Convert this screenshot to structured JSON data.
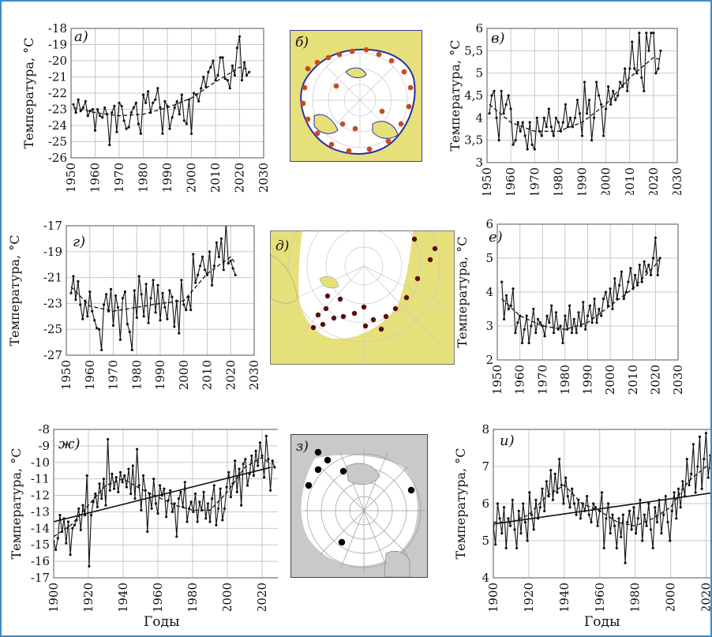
{
  "figure": {
    "ylabel": "Температура, °С",
    "xlabel": "Годы",
    "accent": "#3f8ac6",
    "map_land_color": "#e6e07a",
    "map_ocean_color": "#ffffff",
    "map_gray_land": "#c9c9c9",
    "station_red": "#e23b23",
    "station_dark": "#5a0d0d"
  },
  "maps": [
    {
      "label": "б)",
      "name": "map-b"
    },
    {
      "label": "д)",
      "name": "map-d"
    },
    {
      "label": "з)",
      "name": "map-z"
    }
  ],
  "chart_data": [
    {
      "panel": "а)",
      "type": "line",
      "ylabel": "Температура, °С",
      "xlim": [
        1950,
        2030
      ],
      "xticks": [
        1950,
        1960,
        1970,
        1980,
        1990,
        2000,
        2010,
        2020,
        2030
      ],
      "ylim": [
        -26,
        -18
      ],
      "yticks": [
        -26,
        -25,
        -24,
        -23,
        -22,
        -21,
        -20,
        -19,
        -18
      ],
      "ytick_labels": [
        "-26",
        "-25",
        "-24",
        "-23",
        "-22",
        "-21",
        "-20",
        "-19",
        "-18"
      ],
      "x_start": 1951,
      "values": [
        -22.7,
        -23.2,
        -22.4,
        -23.1,
        -22.9,
        -22.5,
        -23.4,
        -23.1,
        -23.0,
        -24.3,
        -23.0,
        -23.4,
        -23.5,
        -22.9,
        -23.3,
        -25.2,
        -23.2,
        -22.8,
        -24.4,
        -22.6,
        -22.8,
        -23.7,
        -24.2,
        -24.1,
        -23.2,
        -22.9,
        -22.6,
        -23.9,
        -24.5,
        -22.1,
        -22.6,
        -21.9,
        -23.2,
        -22.6,
        -22.4,
        -21.7,
        -22.9,
        -24.5,
        -22.5,
        -22.8,
        -24.2,
        -23.5,
        -22.9,
        -22.5,
        -23.3,
        -22.1,
        -23.7,
        -23.9,
        -22.4,
        -24.5,
        -22.0,
        -22.1,
        -22.5,
        -21.7,
        -21.0,
        -21.6,
        -20.7,
        -20.4,
        -20.0,
        -21.2,
        -20.9,
        -19.8,
        -19.8,
        -21.1,
        -21.2,
        -21.7,
        -20.3,
        -20.9,
        -19.2,
        -18.5,
        -21.2,
        -20.1,
        -20.9,
        -20.7
      ],
      "trend": {
        "style": "dashed",
        "x": [
          1951,
          1960,
          1970,
          1980,
          1990,
          2000,
          2010,
          2020,
          2023
        ],
        "y": [
          -22.9,
          -23.2,
          -23.4,
          -23.3,
          -22.9,
          -22.3,
          -21.3,
          -20.4,
          -20.5
        ]
      }
    },
    {
      "panel": "в)",
      "type": "line",
      "ylabel": "Температура, °С",
      "xlim": [
        1950,
        2030
      ],
      "xticks": [
        1950,
        1960,
        1970,
        1980,
        1990,
        2000,
        2010,
        2020,
        2030
      ],
      "ylim": [
        3,
        6
      ],
      "yticks": [
        3,
        3.5,
        4,
        4.5,
        5,
        5.5,
        6
      ],
      "ytick_labels": [
        "3",
        "3,5",
        "4",
        "4,5",
        "5",
        "5,5",
        "6"
      ],
      "x_start": 1951,
      "values": [
        4.1,
        4.5,
        4.6,
        4.0,
        3.5,
        4.6,
        4.1,
        4.3,
        4.5,
        4.2,
        3.4,
        3.5,
        3.9,
        3.7,
        3.9,
        3.6,
        3.3,
        3.9,
        3.4,
        3.3,
        4.0,
        3.7,
        3.6,
        4.0,
        3.8,
        4.2,
        3.8,
        3.6,
        4.0,
        3.9,
        3.7,
        3.9,
        4.3,
        3.8,
        4.0,
        3.8,
        4.0,
        4.4,
        4.1,
        3.6,
        4.8,
        4.1,
        4.4,
        3.5,
        4.0,
        4.8,
        4.5,
        4.3,
        3.6,
        4.2,
        4.7,
        4.3,
        4.6,
        4.4,
        4.5,
        4.8,
        4.7,
        5.1,
        4.6,
        5.1,
        5.7,
        5.1,
        5.0,
        5.9,
        4.9,
        4.6,
        5.9,
        5.5,
        5.9,
        5.9,
        5.0,
        5.1,
        5.5
      ],
      "trend": {
        "style": "dashed",
        "x": [
          1951,
          1960,
          1970,
          1980,
          1990,
          2000,
          2010,
          2020,
          2023
        ],
        "y": [
          4.3,
          3.9,
          3.7,
          3.7,
          3.9,
          4.3,
          4.9,
          5.35,
          5.3
        ]
      }
    },
    {
      "panel": "г)",
      "type": "line",
      "ylabel": "Температура, °С",
      "xlim": [
        1950,
        2030
      ],
      "xticks": [
        1950,
        1960,
        1970,
        1980,
        1990,
        2000,
        2010,
        2020,
        2030
      ],
      "ylim": [
        -27,
        -17
      ],
      "yticks": [
        -27,
        -25,
        -23,
        -21,
        -19,
        -17
      ],
      "ytick_labels": [
        "-27",
        "-25",
        "-23",
        "-21",
        "-19",
        "-17"
      ],
      "x_start": 1952,
      "values": [
        -22.2,
        -20.9,
        -22.7,
        -21.3,
        -23.1,
        -24.2,
        -22.8,
        -24.0,
        -22.1,
        -23.6,
        -24.3,
        -24.9,
        -25.0,
        -26.6,
        -23.1,
        -22.3,
        -23.6,
        -21.9,
        -24.7,
        -22.4,
        -23.3,
        -25.8,
        -22.6,
        -22.1,
        -24.6,
        -25.2,
        -26.6,
        -22.0,
        -24.1,
        -20.9,
        -22.3,
        -24.0,
        -21.5,
        -24.5,
        -22.6,
        -21.2,
        -23.7,
        -21.6,
        -24.3,
        -22.2,
        -23.3,
        -24.2,
        -22.0,
        -22.5,
        -24.8,
        -22.8,
        -25.3,
        -21.2,
        -23.1,
        -23.5,
        -22.5,
        -23.5,
        -19.2,
        -21.4,
        -20.8,
        -20.1,
        -19.4,
        -20.4,
        -20.8,
        -19.0,
        -21.6,
        -20.1,
        -18.3,
        -19.4,
        -18.0,
        -20.4,
        -16.8,
        -19.9,
        -19.7,
        -20.3,
        -20.8
      ],
      "trend": {
        "style": "dashed",
        "x": [
          1952,
          1960,
          1970,
          1980,
          1990,
          2000,
          2010,
          2020,
          2022
        ],
        "y": [
          -21.7,
          -23.2,
          -23.6,
          -23.3,
          -23.0,
          -22.8,
          -20.7,
          -19.4,
          -19.9
        ]
      }
    },
    {
      "panel": "е)",
      "type": "line",
      "ylabel": "Температура, °С",
      "xlim": [
        1950,
        2030
      ],
      "xticks": [
        1950,
        1960,
        1970,
        1980,
        1990,
        2000,
        2010,
        2020,
        2030
      ],
      "ylim": [
        2,
        6
      ],
      "yticks": [
        2,
        3,
        4,
        5,
        6
      ],
      "ytick_labels": [
        "2",
        "3",
        "4",
        "5",
        "6"
      ],
      "x_start": 1952,
      "values": [
        4.3,
        3.2,
        3.9,
        3.5,
        3.6,
        4.1,
        2.8,
        3.1,
        3.3,
        2.5,
        2.9,
        3.3,
        2.5,
        3.0,
        3.5,
        2.8,
        3.2,
        3.1,
        3.0,
        2.7,
        3.3,
        3.1,
        3.6,
        2.8,
        3.4,
        2.9,
        3.0,
        2.5,
        3.3,
        2.9,
        3.6,
        2.8,
        3.2,
        2.8,
        3.4,
        3.0,
        3.7,
        2.9,
        3.3,
        3.6,
        3.1,
        3.8,
        3.1,
        3.5,
        3.3,
        3.8,
        4.0,
        3.6,
        4.1,
        3.5,
        4.4,
        3.8,
        4.2,
        4.6,
        3.8,
        4.0,
        4.3,
        4.7,
        4.1,
        4.5,
        4.2,
        4.8,
        4.3,
        4.9,
        4.6,
        4.8,
        4.5,
        5.0,
        5.6,
        4.5,
        5.0
      ],
      "trend": {
        "style": "dashed",
        "x": [
          1952,
          1960,
          1970,
          1980,
          1990,
          2000,
          2010,
          2020,
          2022
        ],
        "y": [
          3.8,
          3.3,
          3.0,
          2.9,
          3.1,
          3.6,
          4.1,
          4.8,
          5.0
        ]
      }
    },
    {
      "panel": "ж)",
      "type": "line",
      "ylabel": "Температура, °С",
      "xlabel": "Годы",
      "xlim": [
        1900,
        2030
      ],
      "xticks": [
        1900,
        1920,
        1940,
        1960,
        1980,
        2000,
        2020
      ],
      "ylim": [
        -17,
        -8
      ],
      "yticks": [
        -17,
        -16,
        -15,
        -14,
        -13,
        -12,
        -11,
        -10,
        -9,
        -8
      ],
      "ytick_labels": [
        "-17",
        "-16",
        "-15",
        "-14",
        "-13",
        "-12",
        "-11",
        "-10",
        "-9",
        "-8"
      ],
      "x_start": 1900,
      "x_step": 1.2,
      "values": [
        -14.8,
        -15.3,
        -14.6,
        -13.2,
        -14.2,
        -13.4,
        -14.9,
        -13.6,
        -15.6,
        -14.0,
        -13.8,
        -13.5,
        -12.8,
        -14.1,
        -12.6,
        -13.2,
        -10.8,
        -16.3,
        -13.2,
        -12.4,
        -11.9,
        -12.7,
        -11.3,
        -12.2,
        -11.0,
        -12.6,
        -8.6,
        -11.7,
        -10.7,
        -11.6,
        -10.9,
        -11.8,
        -10.6,
        -11.2,
        -10.8,
        -11.5,
        -10.4,
        -11.9,
        -10.2,
        -12.2,
        -9.2,
        -11.4,
        -12.9,
        -10.8,
        -11.7,
        -14.2,
        -11.9,
        -12.8,
        -11.0,
        -12.5,
        -13.1,
        -11.4,
        -12.0,
        -11.6,
        -13.3,
        -12.3,
        -11.7,
        -13.0,
        -12.5,
        -14.5,
        -12.2,
        -11.8,
        -12.7,
        -11.2,
        -13.6,
        -12.8,
        -12.4,
        -13.0,
        -11.9,
        -13.6,
        -12.4,
        -12.9,
        -11.8,
        -13.4,
        -12.5,
        -13.6,
        -12.2,
        -11.4,
        -13.8,
        -12.8,
        -11.6,
        -13.5,
        -12.8,
        -11.5,
        -10.6,
        -12.1,
        -11.3,
        -9.9,
        -11.8,
        -10.4,
        -12.6,
        -10.1,
        -9.8,
        -11.4,
        -10.7,
        -9.6,
        -10.8,
        -9.3,
        -10.2,
        -8.8,
        -9.6,
        -10.9,
        -8.4,
        -9.8,
        -11.7,
        -9.9,
        -10.3
      ],
      "trend": {
        "style": "dashed",
        "x": [
          1900,
          1910,
          1920,
          1930,
          1940,
          1950,
          1960,
          1970,
          1980,
          1990,
          2000,
          2010,
          2020,
          2025
        ],
        "y": [
          -14.5,
          -13.8,
          -12.6,
          -11.4,
          -11.0,
          -11.6,
          -12.1,
          -12.6,
          -12.9,
          -12.9,
          -11.8,
          -10.3,
          -9.7,
          -10.1
        ]
      },
      "linear_fit": {
        "style": "solid",
        "x": [
          1900,
          2025
        ],
        "y": [
          -13.6,
          -10.3
        ]
      }
    },
    {
      "panel": "и)",
      "type": "line",
      "ylabel": "Температура, °С",
      "xlabel": "Годы",
      "xlim": [
        1900,
        2030
      ],
      "xticks": [
        1900,
        1920,
        1940,
        1960,
        1980,
        2000,
        2020
      ],
      "ylim": [
        4,
        8
      ],
      "yticks": [
        4,
        5,
        6,
        7,
        8
      ],
      "ytick_labels": [
        "4",
        "5",
        "6",
        "7",
        "8"
      ],
      "x_start": 1900,
      "x_step": 1.2,
      "values": [
        5.4,
        4.9,
        6.0,
        5.6,
        5.2,
        5.9,
        4.8,
        5.6,
        5.4,
        6.1,
        5.3,
        4.8,
        5.8,
        5.2,
        6.0,
        5.5,
        5.0,
        6.3,
        5.7,
        5.3,
        6.1,
        5.6,
        5.9,
        6.4,
        5.8,
        6.6,
        6.2,
        6.9,
        6.1,
        6.8,
        6.3,
        7.2,
        6.5,
        6.0,
        6.7,
        6.2,
        5.9,
        6.4,
        6.0,
        5.7,
        6.1,
        5.6,
        6.0,
        5.8,
        6.2,
        5.7,
        5.5,
        6.0,
        5.9,
        5.4,
        5.8,
        6.3,
        4.8,
        5.6,
        6.0,
        5.2,
        5.7,
        5.4,
        4.8,
        5.6,
        5.1,
        5.7,
        4.4,
        5.5,
        5.8,
        5.3,
        5.9,
        5.2,
        5.6,
        6.1,
        5.0,
        5.7,
        5.4,
        6.0,
        5.3,
        4.8,
        5.9,
        5.5,
        6.1,
        5.2,
        5.7,
        6.2,
        5.5,
        5.0,
        5.8,
        6.3,
        5.6,
        6.4,
        5.9,
        6.6,
        6.2,
        7.2,
        6.5,
        6.8,
        7.6,
        6.3,
        7.0,
        7.8,
        6.4,
        7.2,
        7.9,
        6.7,
        7.3
      ],
      "trend": {
        "style": "dashed",
        "x": [
          1900,
          1910,
          1920,
          1930,
          1940,
          1950,
          1960,
          1970,
          1980,
          1990,
          2000,
          2010,
          2020,
          2025
        ],
        "y": [
          5.5,
          5.5,
          5.7,
          6.2,
          6.5,
          6.0,
          5.8,
          5.5,
          5.4,
          5.6,
          5.9,
          6.6,
          7.0,
          6.9
        ]
      },
      "linear_fit": {
        "style": "solid",
        "x": [
          1900,
          2025
        ],
        "y": [
          5.45,
          6.3
        ]
      }
    }
  ]
}
